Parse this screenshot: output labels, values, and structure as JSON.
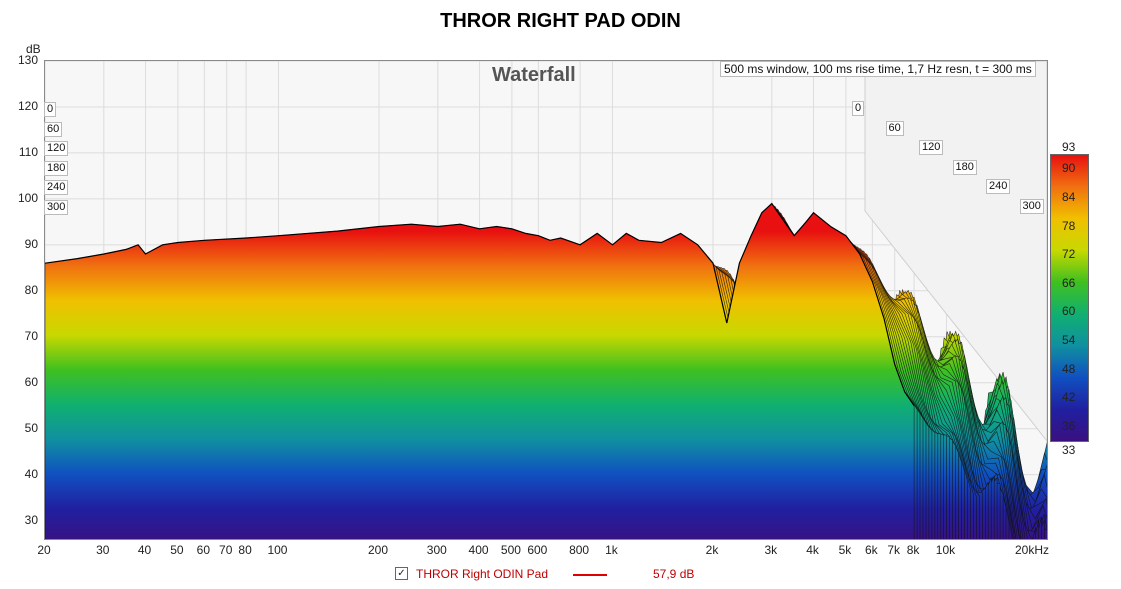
{
  "title": "THROR RIGHT PAD ODIN",
  "chart_data": {
    "type": "area",
    "title": "THROR RIGHT PAD ODIN",
    "subtitle": "Waterfall",
    "settings": "500 ms window, 100 ms rise time,  1,7 Hz resn, t = 300 ms",
    "yunit": "dB",
    "ylim": [
      26,
      130
    ],
    "xlim": [
      20,
      20000
    ],
    "xscale": "log",
    "grid": true,
    "y_ticks": [
      "130",
      "120",
      "110",
      "100",
      "90",
      "80",
      "70",
      "60",
      "50",
      "40",
      "30"
    ],
    "x_ticks": [
      "20",
      "30",
      "40",
      "50",
      "60",
      "70",
      "80",
      "100",
      "200",
      "300",
      "400",
      "500",
      "600",
      "800",
      "1k",
      "2k",
      "3k",
      "4k",
      "5k",
      "6k",
      "7k",
      "8k",
      "10k",
      "20kHz"
    ],
    "time_labels_left": [
      "0",
      "60",
      "120",
      "180",
      "240",
      "300"
    ],
    "time_labels_right": [
      "0",
      "60",
      "120",
      "180",
      "240",
      "300"
    ],
    "colorbar": {
      "min_label": "33",
      "max_label": "93",
      "ticks": [
        "90",
        "84",
        "78",
        "72",
        "66",
        "60",
        "54",
        "48",
        "42",
        "36"
      ],
      "colors": [
        "#e81010",
        "#f07010",
        "#f0c000",
        "#c8d800",
        "#40c020",
        "#10b070",
        "#1090a0",
        "#1050c0",
        "#2020a0",
        "#3a1080"
      ]
    },
    "series": [
      {
        "name": "THROR Right ODIN Pad",
        "color": "#e00000",
        "value_text": "57,9 dB",
        "front_slice_t0": {
          "x": [
            20,
            25,
            30,
            35,
            38,
            40,
            45,
            50,
            60,
            80,
            100,
            150,
            200,
            250,
            300,
            350,
            400,
            450,
            500,
            550,
            600,
            650,
            700,
            800,
            900,
            1000,
            1100,
            1200,
            1400,
            1600,
            1800,
            2000,
            2200,
            2400,
            2600,
            2800,
            3000,
            3200,
            3500,
            3800,
            4000,
            4500,
            5000,
            5500,
            6000,
            6500,
            7000,
            7500,
            8000
          ],
          "y": [
            86,
            87,
            88,
            89,
            90,
            88,
            90,
            90.5,
            91,
            91.5,
            92,
            93,
            94,
            94.5,
            94,
            94.5,
            93.5,
            94,
            93.5,
            92.5,
            92,
            91,
            91.5,
            90,
            92.5,
            90,
            92.5,
            91,
            90.5,
            92.5,
            90,
            86,
            73,
            86,
            92,
            97,
            99,
            96,
            92,
            95,
            97,
            94,
            92,
            88,
            82,
            74,
            64,
            58,
            55
          ]
        }
      }
    ]
  },
  "legend": {
    "checked_glyph": "✓",
    "name": "THROR Right ODIN Pad",
    "value": "57,9 dB"
  }
}
